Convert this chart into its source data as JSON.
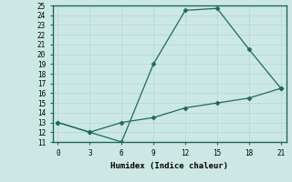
{
  "xlabel": "Humidex (Indice chaleur)",
  "x": [
    0,
    3,
    6,
    9,
    12,
    15,
    18,
    21
  ],
  "line1_y": [
    13,
    12,
    11,
    19,
    24.5,
    24.7,
    20.5,
    16.5
  ],
  "line2_y": [
    13,
    12,
    13,
    13.5,
    14.5,
    15.0,
    15.5,
    16.5
  ],
  "line_color": "#1a6b5e",
  "bg_color": "#cce8e4",
  "grid_color": "#b8d8d4",
  "xlim": [
    -0.5,
    21.5
  ],
  "ylim": [
    11,
    25
  ],
  "xticks": [
    0,
    3,
    6,
    9,
    12,
    15,
    18,
    21
  ],
  "yticks": [
    11,
    12,
    13,
    14,
    15,
    16,
    17,
    18,
    19,
    20,
    21,
    22,
    23,
    24,
    25
  ],
  "marker": "D",
  "markersize": 2.5,
  "linewidth": 0.9,
  "tick_fontsize": 5.5,
  "xlabel_fontsize": 6.5,
  "font_family": "monospace"
}
